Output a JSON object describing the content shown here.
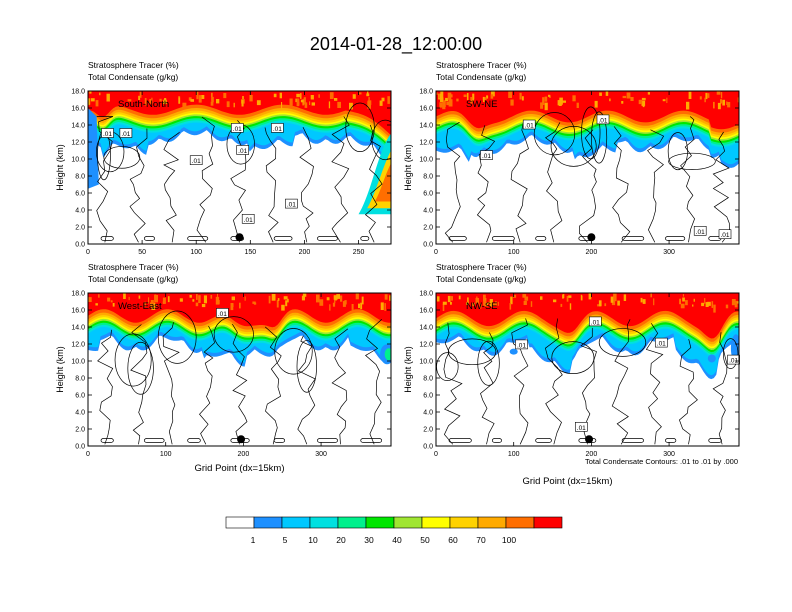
{
  "title": "2014-01-28_12:00:00",
  "footnote": "Total Condensate Contours: .01 to .01 by .000",
  "colorbar": {
    "colors": [
      "#ffffff",
      "#1e90ff",
      "#00c8ff",
      "#00e0e0",
      "#00f08c",
      "#00e600",
      "#a0e632",
      "#ffff00",
      "#ffd200",
      "#ffaa00",
      "#ff6e00",
      "#ff0000"
    ],
    "labels": [
      "1",
      "5",
      "10",
      "20",
      "30",
      "40",
      "50",
      "60",
      "70",
      "100"
    ]
  },
  "chart_data": [
    {
      "type": "contour",
      "title": "South-North",
      "header_line1": "Stratosphere Tracer   (%)",
      "header_line2": "Total Condensate   (g/kg)",
      "ylabel": "Height (km)",
      "xlabel": "",
      "xlim": [
        0,
        280
      ],
      "ylim": [
        0,
        18
      ],
      "xticks": [
        "0",
        "50",
        "100",
        "150",
        "200",
        "250"
      ],
      "xtick_values": [
        0,
        50,
        100,
        150,
        200,
        250
      ],
      "yticks": [
        "0.0",
        "2.0",
        "4.0",
        "6.0",
        "8.0",
        "10.0",
        "12.0",
        "14.0",
        "16.0",
        "18.0"
      ],
      "marker_x": 140,
      "contour_labels": [
        {
          "text": ".01",
          "x": 18,
          "y": 13.0
        },
        {
          "text": ".01",
          "x": 35,
          "y": 13.0
        },
        {
          "text": ".01",
          "x": 138,
          "y": 13.6
        },
        {
          "text": ".01",
          "x": 175,
          "y": 13.6
        },
        {
          "text": ".01",
          "x": 100,
          "y": 9.8
        },
        {
          "text": ".01",
          "x": 143,
          "y": 11.0
        },
        {
          "text": ".01",
          "x": 188,
          "y": 4.7
        },
        {
          "text": ".01",
          "x": 148,
          "y": 2.9
        }
      ]
    },
    {
      "type": "contour",
      "title": "SW-NE",
      "header_line1": "Stratosphere Tracer   (%)",
      "header_line2": "Total Condensate   (g/kg)",
      "ylabel": "Height (km)",
      "xlabel": "",
      "xlim": [
        0,
        390
      ],
      "ylim": [
        0,
        18
      ],
      "xticks": [
        "0",
        "100",
        "200",
        "300"
      ],
      "xtick_values": [
        0,
        100,
        200,
        300
      ],
      "yticks": [
        "0.0",
        "2.0",
        "4.0",
        "6.0",
        "8.0",
        "10.0",
        "12.0",
        "14.0",
        "16.0",
        "18.0"
      ],
      "marker_x": 200,
      "contour_labels": [
        {
          "text": ".01",
          "x": 120,
          "y": 14.0
        },
        {
          "text": ".01",
          "x": 215,
          "y": 14.6
        },
        {
          "text": ".01",
          "x": 65,
          "y": 10.4
        },
        {
          "text": ".01",
          "x": 340,
          "y": 1.5
        },
        {
          "text": ".01",
          "x": 372,
          "y": 1.1
        }
      ]
    },
    {
      "type": "contour",
      "title": "West-East",
      "header_line1": "Stratosphere Tracer   (%)",
      "header_line2": "Total Condensate   (g/kg)",
      "ylabel": "Height (km)",
      "xlabel": "Grid Point (dx=15km)",
      "xlim": [
        0,
        390
      ],
      "ylim": [
        0,
        18
      ],
      "xticks": [
        "0",
        "100",
        "200",
        "300"
      ],
      "xtick_values": [
        0,
        100,
        200,
        300
      ],
      "yticks": [
        "0.0",
        "2.0",
        "4.0",
        "6.0",
        "8.0",
        "10.0",
        "12.0",
        "14.0",
        "16.0",
        "18.0"
      ],
      "marker_x": 197,
      "contour_labels": [
        {
          "text": ".01",
          "x": 173,
          "y": 15.6
        }
      ]
    },
    {
      "type": "contour",
      "title": "NW-SE",
      "header_line1": "Stratosphere Tracer   (%)",
      "header_line2": "Total Condensate   (g/kg)",
      "ylabel": "Height (km)",
      "xlabel": "Grid Point (dx=15km)",
      "xlim": [
        0,
        390
      ],
      "ylim": [
        0,
        18
      ],
      "xticks": [
        "0",
        "100",
        "200",
        "300"
      ],
      "xtick_values": [
        0,
        100,
        200,
        300
      ],
      "yticks": [
        "0.0",
        "2.0",
        "4.0",
        "6.0",
        "8.0",
        "10.0",
        "12.0",
        "14.0",
        "16.0",
        "18.0"
      ],
      "marker_x": 197,
      "contour_labels": [
        {
          "text": ".01",
          "x": 205,
          "y": 14.6
        },
        {
          "text": ".01",
          "x": 110,
          "y": 11.9
        },
        {
          "text": ".01",
          "x": 290,
          "y": 12.1
        },
        {
          "text": ".01",
          "x": 383,
          "y": 10.1
        },
        {
          "text": ".01",
          "x": 187,
          "y": 2.2
        }
      ]
    }
  ]
}
